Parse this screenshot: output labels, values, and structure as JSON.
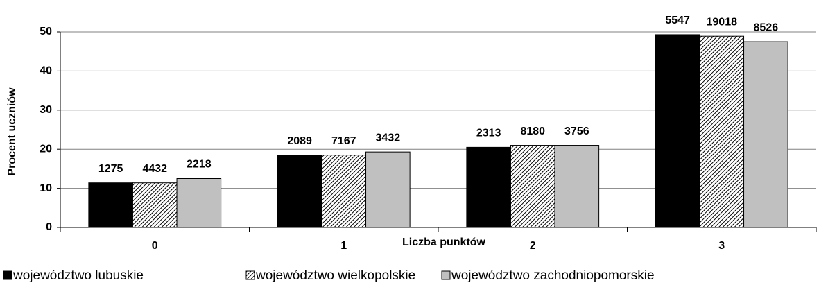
{
  "chart_data": {
    "type": "bar",
    "categories": [
      "0",
      "1",
      "2",
      "3"
    ],
    "xlabel": "Liczba punktów",
    "ylabel": "Procent uczniów",
    "series": [
      {
        "name": "województwo lubuskie",
        "color": "#000000",
        "values": [
          11.4,
          18.5,
          20.5,
          49.3
        ],
        "counts": [
          1275,
          2089,
          2313,
          5547
        ]
      },
      {
        "name": "województwo wielkopolskie",
        "color": "#000000",
        "pattern": "hatch",
        "values": [
          11.4,
          18.5,
          21.0,
          48.9
        ],
        "counts": [
          4432,
          7167,
          8180,
          19018
        ]
      },
      {
        "name": "województwo zachodniopomorskie",
        "color": "#c0c0c0",
        "values": [
          12.5,
          19.3,
          21.0,
          47.5
        ],
        "counts": [
          2218,
          3432,
          3756,
          8526
        ]
      }
    ],
    "ylim": [
      0,
      50
    ],
    "yticks": [
      0,
      10,
      20,
      30,
      40,
      50
    ],
    "grid": true,
    "legend": "bottom"
  }
}
